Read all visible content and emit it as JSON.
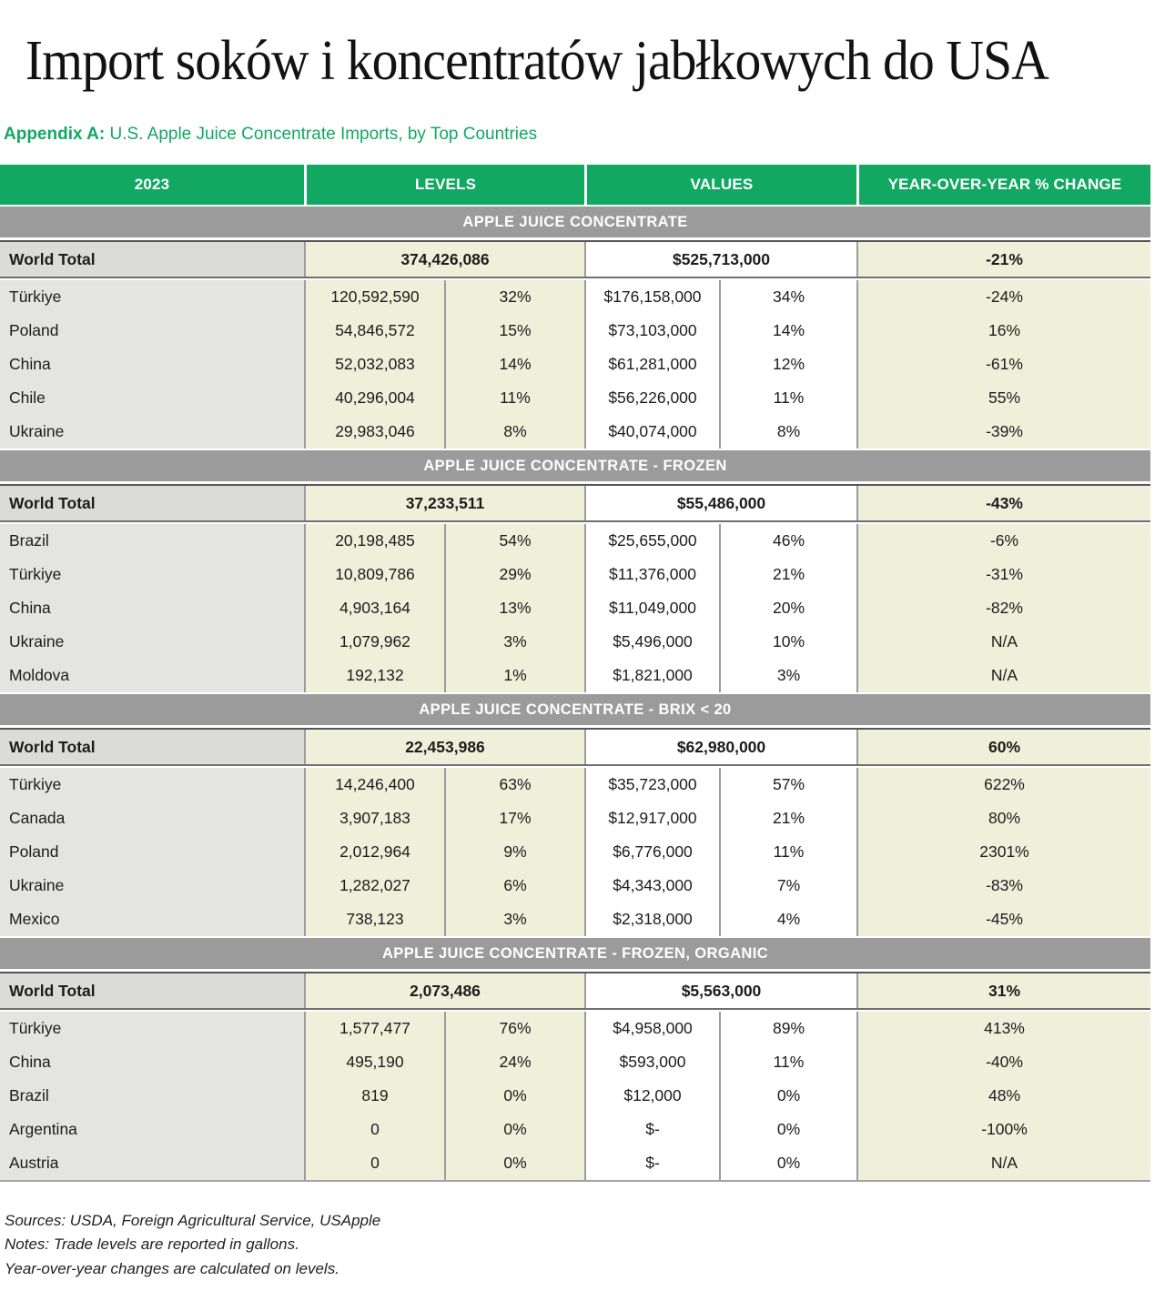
{
  "chart_data": {
    "type": "table",
    "title": "Import soków i koncentratów jabłkowych do USA",
    "appendix_label": "Appendix A:",
    "appendix_text": " U.S. Apple Juice Concentrate Imports, by Top Countries",
    "columns": [
      "2023",
      "LEVELS",
      "VALUES",
      "YEAR-OVER-YEAR % CHANGE"
    ],
    "sections": [
      {
        "header": "APPLE JUICE CONCENTRATE",
        "world_total": {
          "label": "World Total",
          "level": "374,426,086",
          "value": "$525,713,000",
          "yoy": "-21%"
        },
        "rows": [
          [
            "Türkiye",
            "120,592,590",
            "32%",
            "$176,158,000",
            "34%",
            "-24%"
          ],
          [
            "Poland",
            "54,846,572",
            "15%",
            "$73,103,000",
            "14%",
            "16%"
          ],
          [
            "China",
            "52,032,083",
            "14%",
            "$61,281,000",
            "12%",
            "-61%"
          ],
          [
            "Chile",
            "40,296,004",
            "11%",
            "$56,226,000",
            "11%",
            "55%"
          ],
          [
            "Ukraine",
            "29,983,046",
            "8%",
            "$40,074,000",
            "8%",
            "-39%"
          ]
        ]
      },
      {
        "header": "APPLE JUICE CONCENTRATE - FROZEN",
        "world_total": {
          "label": "World Total",
          "level": "37,233,511",
          "value": "$55,486,000",
          "yoy": "-43%"
        },
        "rows": [
          [
            "Brazil",
            "20,198,485",
            "54%",
            "$25,655,000",
            "46%",
            "-6%"
          ],
          [
            "Türkiye",
            "10,809,786",
            "29%",
            "$11,376,000",
            "21%",
            "-31%"
          ],
          [
            "China",
            "4,903,164",
            "13%",
            "$11,049,000",
            "20%",
            "-82%"
          ],
          [
            "Ukraine",
            "1,079,962",
            "3%",
            "$5,496,000",
            "10%",
            "N/A"
          ],
          [
            "Moldova",
            "192,132",
            "1%",
            "$1,821,000",
            "3%",
            "N/A"
          ]
        ]
      },
      {
        "header": "APPLE JUICE CONCENTRATE - BRIX < 20",
        "world_total": {
          "label": "World Total",
          "level": "22,453,986",
          "value": "$62,980,000",
          "yoy": "60%"
        },
        "rows": [
          [
            "Türkiye",
            "14,246,400",
            "63%",
            "$35,723,000",
            "57%",
            "622%"
          ],
          [
            "Canada",
            "3,907,183",
            "17%",
            "$12,917,000",
            "21%",
            "80%"
          ],
          [
            "Poland",
            "2,012,964",
            "9%",
            "$6,776,000",
            "11%",
            "2301%"
          ],
          [
            "Ukraine",
            "1,282,027",
            "6%",
            "$4,343,000",
            "7%",
            "-83%"
          ],
          [
            "Mexico",
            "738,123",
            "3%",
            "$2,318,000",
            "4%",
            "-45%"
          ]
        ]
      },
      {
        "header": "APPLE JUICE CONCENTRATE - FROZEN, ORGANIC",
        "world_total": {
          "label": "World Total",
          "level": "2,073,486",
          "value": "$5,563,000",
          "yoy": "31%"
        },
        "rows": [
          [
            "Türkiye",
            "1,577,477",
            "76%",
            "$4,958,000",
            "89%",
            "413%"
          ],
          [
            "China",
            "495,190",
            "24%",
            "$593,000",
            "11%",
            "-40%"
          ],
          [
            "Brazil",
            "819",
            "0%",
            "$12,000",
            "0%",
            "48%"
          ],
          [
            "Argentina",
            "0",
            "0%",
            "$-",
            "0%",
            "-100%"
          ],
          [
            "Austria",
            "0",
            "0%",
            "$-",
            "0%",
            "N/A"
          ]
        ]
      }
    ],
    "footnotes": [
      "Sources: USDA, Foreign Agricultural Service, USApple",
      "Notes: Trade levels are reported in gallons.",
      "Year-over-year changes are calculated on levels."
    ],
    "colors": {
      "header_green": "#12a862",
      "section_bar_gray": "#9b9b9b",
      "country_column_gray": "#e4e4e2",
      "world_total_gray": "#dbdbd9",
      "pale_green_cells": "#eef0da",
      "values_white": "#ffffff"
    }
  }
}
